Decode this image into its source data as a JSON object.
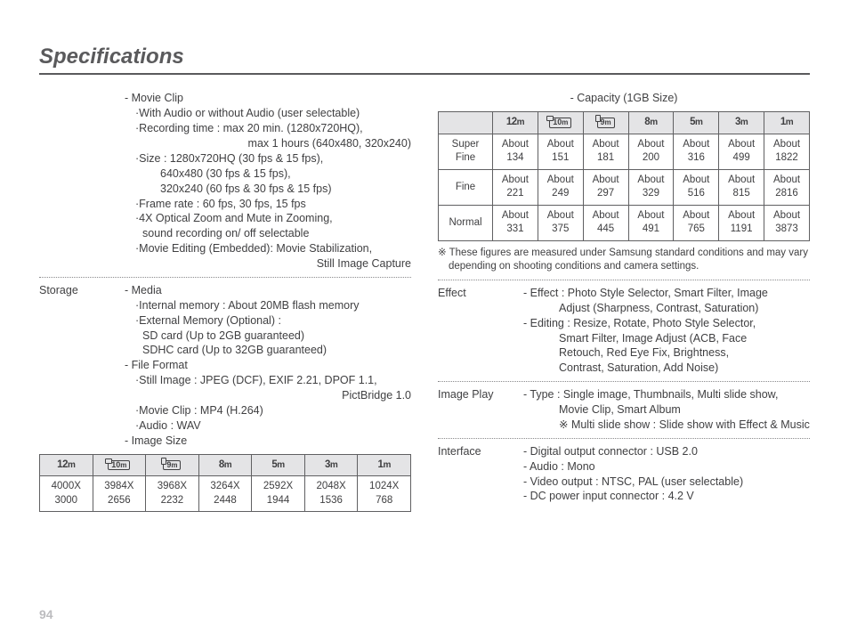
{
  "title": "Specifications",
  "pageNumber": "94",
  "colors": {
    "text": "#404042",
    "rule": "#5a5a5c",
    "tableBorder": "#606062",
    "headerBg": "#e4e4e6",
    "pageNum": "#bcbcbf"
  },
  "left": {
    "movie": {
      "heading": "- Movie Clip",
      "lines": [
        {
          "cls": "l1",
          "t": "·With Audio or without Audio (user selectable)"
        },
        {
          "cls": "l1",
          "t": "·Recording time : max 20 min. (1280x720HQ),"
        },
        {
          "cls": "rt",
          "t": "max 1 hours (640x480, 320x240)"
        },
        {
          "cls": "l1",
          "t": "·Size : 1280x720HQ (30 fps & 15 fps),"
        },
        {
          "cls": "l3",
          "t": "640x480 (30 fps & 15 fps),"
        },
        {
          "cls": "l3",
          "t": "320x240 (60 fps & 30 fps & 15 fps)"
        },
        {
          "cls": "l1",
          "t": "·Frame rate : 60 fps, 30 fps, 15 fps"
        },
        {
          "cls": "l1",
          "t": "·4X Optical Zoom and Mute in Zooming,"
        },
        {
          "cls": "l2",
          "t": "sound recording on/ off selectable"
        },
        {
          "cls": "l1",
          "t": "·Movie Editing (Embedded): Movie Stabilization,"
        },
        {
          "cls": "rt",
          "t": "Still Image Capture"
        }
      ]
    },
    "storage": {
      "label": "Storage",
      "groups": [
        {
          "heading": "- Media",
          "lines": [
            {
              "cls": "l1",
              "t": "·Internal memory : About 20MB flash memory"
            },
            {
              "cls": "l1",
              "t": "·External Memory (Optional) :"
            },
            {
              "cls": "l2",
              "t": "SD card (Up to 2GB guaranteed)"
            },
            {
              "cls": "l2",
              "t": "SDHC card (Up to 32GB guaranteed)"
            }
          ]
        },
        {
          "heading": "- File Format",
          "lines": [
            {
              "cls": "l1",
              "t": "·Still Image : JPEG (DCF), EXIF 2.21, DPOF 1.1,"
            },
            {
              "cls": "rt",
              "t": "PictBridge 1.0"
            },
            {
              "cls": "l1",
              "t": "·Movie Clip : MP4 (H.264)"
            },
            {
              "cls": "l1",
              "t": "·Audio : WAV"
            }
          ]
        },
        {
          "heading": "- Image Size",
          "lines": []
        }
      ]
    },
    "imageSizeTable": {
      "headers": [
        "12m",
        "10m_w",
        "9m_p",
        "8m",
        "5m",
        "3m",
        "1m"
      ],
      "row": [
        "4000X 3000",
        "3984X 2656",
        "3968X 2232",
        "3264X 2448",
        "2592X 1944",
        "2048X 1536",
        "1024X 768"
      ]
    }
  },
  "right": {
    "capacityCaption": "- Capacity (1GB Size)",
    "capacityTable": {
      "headers": [
        "12m",
        "10m_w",
        "9m_p",
        "8m",
        "5m",
        "3m",
        "1m"
      ],
      "rows": [
        {
          "label": "Super Fine",
          "cells": [
            "About 134",
            "About 151",
            "About 181",
            "About 200",
            "About 316",
            "About 499",
            "About 1822"
          ]
        },
        {
          "label": "Fine",
          "cells": [
            "About 221",
            "About 249",
            "About 297",
            "About 329",
            "About 516",
            "About 815",
            "About 2816"
          ]
        },
        {
          "label": "Normal",
          "cells": [
            "About 331",
            "About 375",
            "About 445",
            "About 491",
            "About 765",
            "About 1191",
            "About 3873"
          ]
        }
      ]
    },
    "note": "※ These figures are measured under Samsung standard conditions and may vary depending on shooting conditions and camera settings.",
    "sections": [
      {
        "label": "Effect",
        "lines": [
          {
            "cls": "l",
            "t": "- Effect : Photo Style Selector, Smart Filter, Image"
          },
          {
            "cls": "l3",
            "t": "Adjust (Sharpness, Contrast, Saturation)"
          },
          {
            "cls": "l",
            "t": "- Editing : Resize, Rotate, Photo Style Selector,"
          },
          {
            "cls": "l3",
            "t": "Smart Filter, Image Adjust (ACB, Face"
          },
          {
            "cls": "l3",
            "t": "Retouch, Red Eye Fix, Brightness,"
          },
          {
            "cls": "l3",
            "t": "Contrast, Saturation, Add Noise)"
          }
        ]
      },
      {
        "label": "Image Play",
        "lines": [
          {
            "cls": "l",
            "t": "- Type : Single image, Thumbnails, Multi slide show,"
          },
          {
            "cls": "l3",
            "t": "Movie Clip, Smart Album"
          },
          {
            "cls": "l3",
            "t": "※ Multi slide show : Slide show with Effect & Music"
          }
        ]
      },
      {
        "label": "Interface",
        "lines": [
          {
            "cls": "l",
            "t": "- Digital output connector : USB 2.0"
          },
          {
            "cls": "l",
            "t": "- Audio : Mono"
          },
          {
            "cls": "l",
            "t": "- Video output : NTSC, PAL (user selectable)"
          },
          {
            "cls": "l",
            "t": "- DC power input connector : 4.2 V"
          }
        ]
      }
    ]
  },
  "mpIcons": {
    "12m": {
      "type": "plain",
      "text": "12m"
    },
    "10m_w": {
      "type": "box_landscape",
      "text": "10m"
    },
    "9m_p": {
      "type": "box_portrait",
      "text": "9m"
    },
    "8m": {
      "type": "plain",
      "text": "8m"
    },
    "5m": {
      "type": "plain",
      "text": "5m"
    },
    "3m": {
      "type": "plain",
      "text": "3m"
    },
    "1m": {
      "type": "plain",
      "text": "1m"
    }
  }
}
